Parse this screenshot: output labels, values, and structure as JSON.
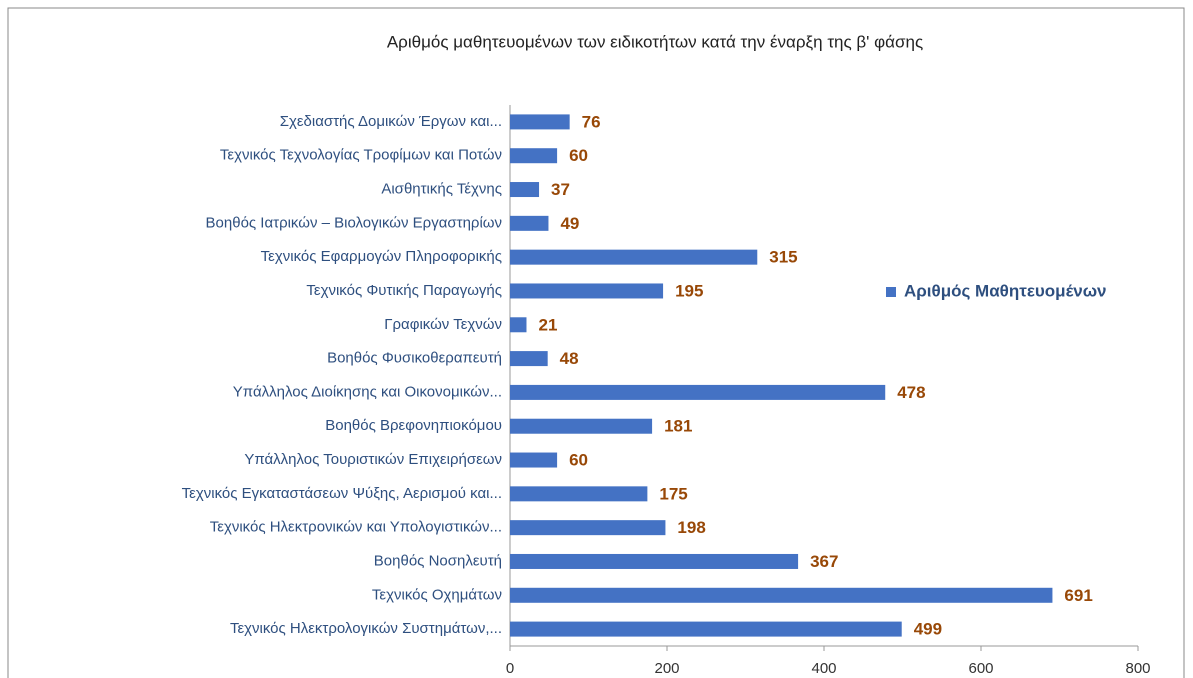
{
  "chart_data": {
    "type": "bar",
    "orientation": "horizontal",
    "title": "Αριθμός μαθητευομένων των ειδικοτήτων κατά την έναρξη της β' φάσης",
    "categories": [
      "Σχεδιαστής Δομικών Έργων και...",
      "Τεχνικός Τεχνολογίας Τροφίμων και Ποτών",
      "Αισθητικής Τέχνης",
      "Βοηθός Ιατρικών – Βιολογικών Εργαστηρίων",
      "Τεχνικός Εφαρμογών Πληροφορικής",
      "Τεχνικός Φυτικής Παραγωγής",
      "Γραφικών Τεχνών",
      "Βοηθός Φυσικοθεραπευτή",
      "Υπάλληλος Διοίκησης και Οικονομικών...",
      "Βοηθός Βρεφονηπιοκόμου",
      "Υπάλληλος Τουριστικών Επιχειρήσεων",
      "Τεχνικός Εγκαταστάσεων Ψύξης, Αερισμού και...",
      "Τεχνικός Ηλεκτρονικών και Υπολογιστικών...",
      "Βοηθός Νοσηλευτή",
      "Τεχνικός Οχημάτων",
      "Τεχνικός Ηλεκτρολογικών Συστημάτων,..."
    ],
    "series": [
      {
        "name": "Αριθμός Μαθητευομένων",
        "color": "#4472c4",
        "values": [
          76,
          60,
          37,
          49,
          315,
          195,
          21,
          48,
          478,
          181,
          60,
          175,
          198,
          367,
          691,
          499
        ]
      }
    ],
    "xlim": [
      0,
      800
    ],
    "xticks": [
      0,
      200,
      400,
      600,
      800
    ],
    "grid": false,
    "legend": "right"
  }
}
